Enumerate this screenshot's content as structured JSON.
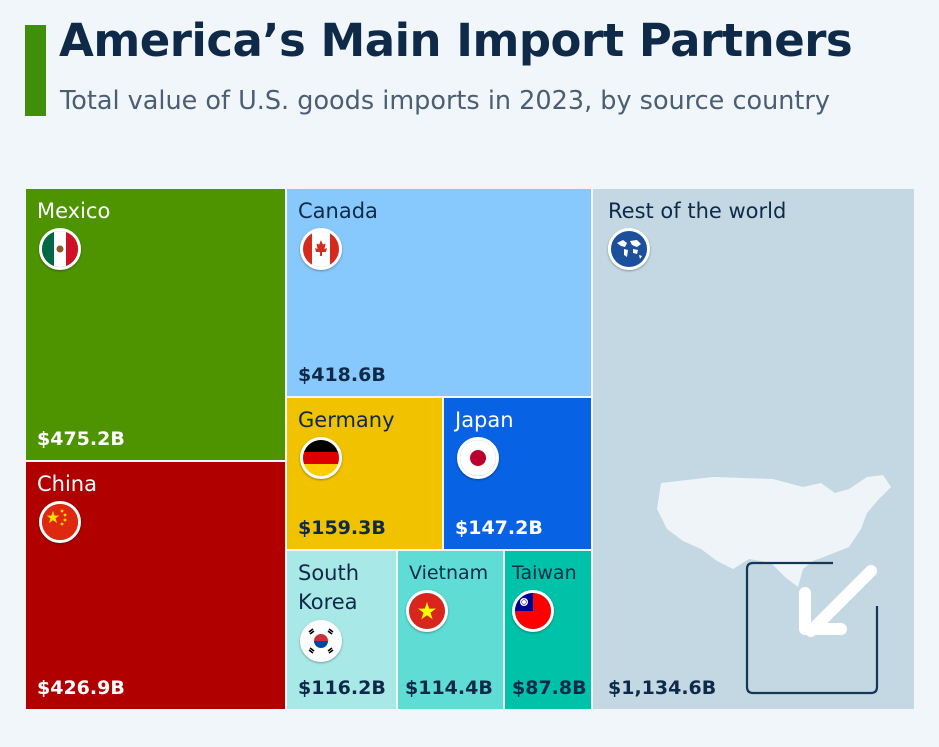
{
  "header": {
    "title": "America’s Main Import Partners",
    "subtitle": "Total value of U.S. goods imports in 2023, by source country"
  },
  "colors": {
    "accent": "#3f8f0a",
    "title": "#0f2a48",
    "mexico": "#4d9400",
    "china": "#b00000",
    "canada": "#87c9fc",
    "germany": "#f0c200",
    "japan": "#0862e4",
    "south_korea": "#a8e8e6",
    "vietnam": "#5fdcd4",
    "taiwan": "#00c2a9",
    "rest_of_world": "#c3d8e2"
  },
  "chart_data": {
    "type": "treemap",
    "title": "America’s Main Import Partners",
    "subtitle": "Total value of U.S. goods imports in 2023, by source country",
    "unit": "USD billions",
    "items": [
      {
        "name": "Mexico",
        "value": 475.2,
        "label": "$475.2B",
        "icon": "mexico-flag-icon"
      },
      {
        "name": "China",
        "value": 426.9,
        "label": "$426.9B",
        "icon": "china-flag-icon"
      },
      {
        "name": "Canada",
        "value": 418.6,
        "label": "$418.6B",
        "icon": "canada-flag-icon"
      },
      {
        "name": "Germany",
        "value": 159.3,
        "label": "$159.3B",
        "icon": "germany-flag-icon"
      },
      {
        "name": "Japan",
        "value": 147.2,
        "label": "$147.2B",
        "icon": "japan-flag-icon"
      },
      {
        "name": "South\nKorea",
        "value": 116.2,
        "label": "$116.2B",
        "icon": "south-korea-flag-icon"
      },
      {
        "name": "Vietnam",
        "value": 114.4,
        "label": "$114.4B",
        "icon": "vietnam-flag-icon"
      },
      {
        "name": "Taiwan",
        "value": 87.8,
        "label": "$87.8B",
        "icon": "taiwan-flag-icon"
      },
      {
        "name": "Rest of the world",
        "value": 1134.6,
        "label": "$1,134.6B",
        "icon": "globe-icon"
      }
    ]
  }
}
